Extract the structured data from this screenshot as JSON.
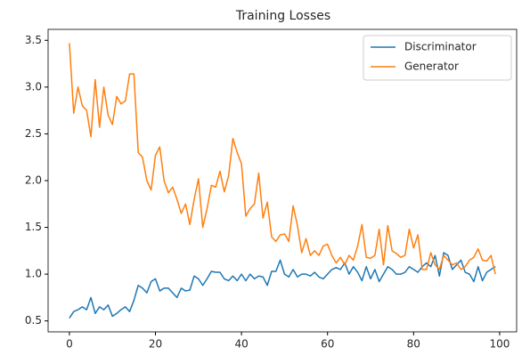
{
  "chart_data": {
    "type": "line",
    "title": "Training Losses",
    "x": [
      0,
      1,
      2,
      3,
      4,
      5,
      6,
      7,
      8,
      9,
      10,
      11,
      12,
      13,
      14,
      15,
      16,
      17,
      18,
      19,
      20,
      21,
      22,
      23,
      24,
      25,
      26,
      27,
      28,
      29,
      30,
      31,
      32,
      33,
      34,
      35,
      36,
      37,
      38,
      39,
      40,
      41,
      42,
      43,
      44,
      45,
      46,
      47,
      48,
      49,
      50,
      51,
      52,
      53,
      54,
      55,
      56,
      57,
      58,
      59,
      60,
      61,
      62,
      63,
      64,
      65,
      66,
      67,
      68,
      69,
      70,
      71,
      72,
      73,
      74,
      75,
      76,
      77,
      78,
      79,
      80,
      81,
      82,
      83,
      84,
      85,
      86,
      87,
      88,
      89,
      90,
      91,
      92,
      93,
      94,
      95,
      96,
      97,
      98,
      99
    ],
    "series": [
      {
        "name": "Discriminator",
        "color": "#1f77b4",
        "values": [
          0.53,
          0.6,
          0.62,
          0.65,
          0.62,
          0.75,
          0.58,
          0.65,
          0.62,
          0.67,
          0.55,
          0.58,
          0.62,
          0.65,
          0.6,
          0.72,
          0.88,
          0.85,
          0.8,
          0.92,
          0.95,
          0.82,
          0.85,
          0.85,
          0.8,
          0.75,
          0.85,
          0.82,
          0.83,
          0.98,
          0.95,
          0.88,
          0.95,
          1.03,
          1.02,
          1.02,
          0.95,
          0.93,
          0.98,
          0.93,
          1.0,
          0.93,
          1.0,
          0.95,
          0.98,
          0.97,
          0.88,
          1.03,
          1.03,
          1.15,
          1.0,
          0.97,
          1.05,
          0.97,
          1.0,
          1.0,
          0.98,
          1.02,
          0.97,
          0.95,
          1.0,
          1.05,
          1.07,
          1.05,
          1.12,
          1.0,
          1.08,
          1.02,
          0.93,
          1.08,
          0.95,
          1.05,
          0.92,
          1.0,
          1.08,
          1.05,
          1.0,
          1.0,
          1.02,
          1.08,
          1.05,
          1.02,
          1.08,
          1.12,
          1.08,
          1.2,
          0.98,
          1.23,
          1.2,
          1.05,
          1.1,
          1.15,
          1.02,
          1.0,
          0.92,
          1.08,
          0.93,
          1.02,
          1.05,
          1.08
        ]
      },
      {
        "name": "Generator",
        "color": "#ff7f0e",
        "values": [
          3.47,
          2.72,
          3.0,
          2.8,
          2.75,
          2.47,
          3.08,
          2.57,
          3.0,
          2.7,
          2.6,
          2.9,
          2.82,
          2.85,
          3.14,
          3.14,
          2.3,
          2.25,
          2.0,
          1.9,
          2.27,
          2.36,
          2.0,
          1.87,
          1.93,
          1.8,
          1.65,
          1.75,
          1.53,
          1.8,
          2.02,
          1.5,
          1.7,
          1.95,
          1.93,
          2.1,
          1.88,
          2.05,
          2.45,
          2.3,
          2.18,
          1.62,
          1.7,
          1.75,
          2.08,
          1.6,
          1.77,
          1.4,
          1.35,
          1.42,
          1.43,
          1.35,
          1.73,
          1.52,
          1.23,
          1.38,
          1.2,
          1.25,
          1.2,
          1.3,
          1.32,
          1.2,
          1.12,
          1.18,
          1.1,
          1.2,
          1.15,
          1.3,
          1.53,
          1.18,
          1.17,
          1.2,
          1.48,
          1.1,
          1.52,
          1.25,
          1.22,
          1.18,
          1.2,
          1.48,
          1.28,
          1.42,
          1.05,
          1.05,
          1.23,
          1.1,
          1.05,
          1.2,
          1.15,
          1.1,
          1.12,
          1.05,
          1.08,
          1.15,
          1.18,
          1.27,
          1.15,
          1.14,
          1.2,
          1.0
        ]
      }
    ],
    "xlim": [
      -4.95,
      103.95
    ],
    "ylim": [
      0.383,
      3.617
    ],
    "xticks": [
      0,
      20,
      40,
      60,
      80,
      100
    ],
    "yticks": [
      0.5,
      {
        "value": 1.0,
        "label": "1.0"
      },
      1.5,
      {
        "value": 2.0,
        "label": "2.0"
      },
      2.5,
      {
        "value": 3.0,
        "label": "3.0"
      },
      3.5
    ],
    "legend": "upper right"
  }
}
